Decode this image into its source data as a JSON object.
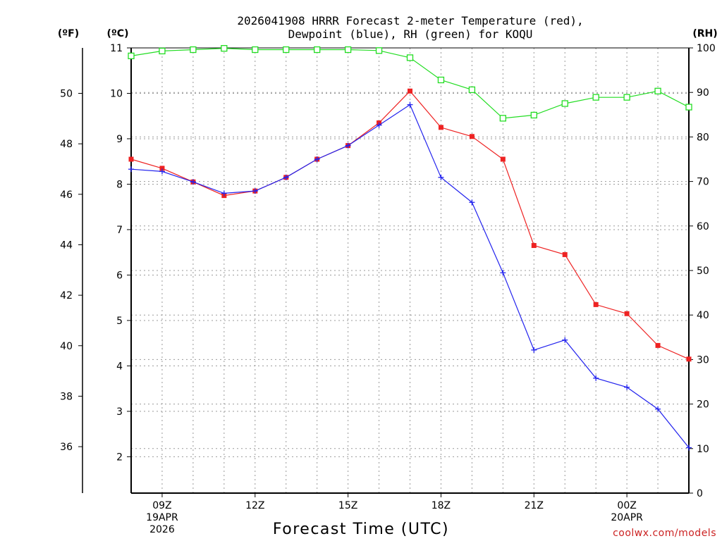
{
  "chart_data": {
    "type": "line",
    "title_lines": [
      "2026041908 HRRR Forecast 2-meter Temperature (red),",
      "Dewpoint (blue), RH (green) for KOQU"
    ],
    "xlabel": "Forecast Time (UTC)",
    "units": {
      "fahrenheit": "(ºF)",
      "celsius": "(ºC)",
      "rh": "(RH)"
    },
    "credit": "coolwx.com/models",
    "credit_color": "#cc2222",
    "colors": {
      "temperature": "#ee2222",
      "dewpoint": "#2222ee",
      "rh": "#22dd22"
    },
    "x": [
      8,
      9,
      10,
      11,
      12,
      13,
      14,
      15,
      16,
      17,
      18,
      19,
      20,
      21,
      22,
      23,
      24,
      25,
      26
    ],
    "xlim": [
      8,
      26
    ],
    "x_ticks": [
      {
        "x": 9,
        "lines": [
          "09Z",
          "19APR",
          "2026"
        ]
      },
      {
        "x": 12,
        "lines": [
          "12Z"
        ]
      },
      {
        "x": 15,
        "lines": [
          "15Z"
        ]
      },
      {
        "x": 18,
        "lines": [
          "18Z"
        ]
      },
      {
        "x": 21,
        "lines": [
          "21Z"
        ]
      },
      {
        "x": 24,
        "lines": [
          "00Z",
          "20APR"
        ]
      }
    ],
    "celsius_axis": {
      "ylim": [
        1.2,
        11.0
      ],
      "ticks": [
        2,
        3,
        4,
        5,
        6,
        7,
        8,
        9,
        10,
        11
      ]
    },
    "fahrenheit_axis": {
      "ticks": [
        36,
        38,
        40,
        42,
        44,
        46,
        48,
        50
      ]
    },
    "rh_axis": {
      "ylim": [
        0,
        100
      ],
      "ticks": [
        0,
        10,
        20,
        30,
        40,
        50,
        60,
        70,
        80,
        90,
        100
      ]
    },
    "series": [
      {
        "name": "Temperature",
        "units": "°C",
        "marker": "filled-square",
        "values": [
          8.55,
          8.35,
          8.05,
          7.75,
          7.85,
          8.15,
          8.55,
          8.85,
          9.35,
          10.05,
          9.25,
          9.05,
          8.55,
          6.65,
          6.45,
          5.35,
          5.15,
          4.45,
          4.15
        ]
      },
      {
        "name": "Dewpoint",
        "units": "°C",
        "marker": "plus",
        "values": [
          8.33,
          8.28,
          8.05,
          7.8,
          7.85,
          8.15,
          8.55,
          8.85,
          9.3,
          9.75,
          8.15,
          7.6,
          6.05,
          4.35,
          4.57,
          3.73,
          3.53,
          3.05,
          2.2
        ]
      },
      {
        "name": "RH",
        "units": "%",
        "marker": "open-square",
        "values": [
          98.2,
          99.3,
          99.6,
          99.9,
          99.6,
          99.6,
          99.6,
          99.6,
          99.4,
          97.8,
          92.8,
          90.6,
          84.2,
          84.9,
          87.5,
          88.9,
          88.9,
          90.3,
          86.7
        ]
      }
    ]
  }
}
